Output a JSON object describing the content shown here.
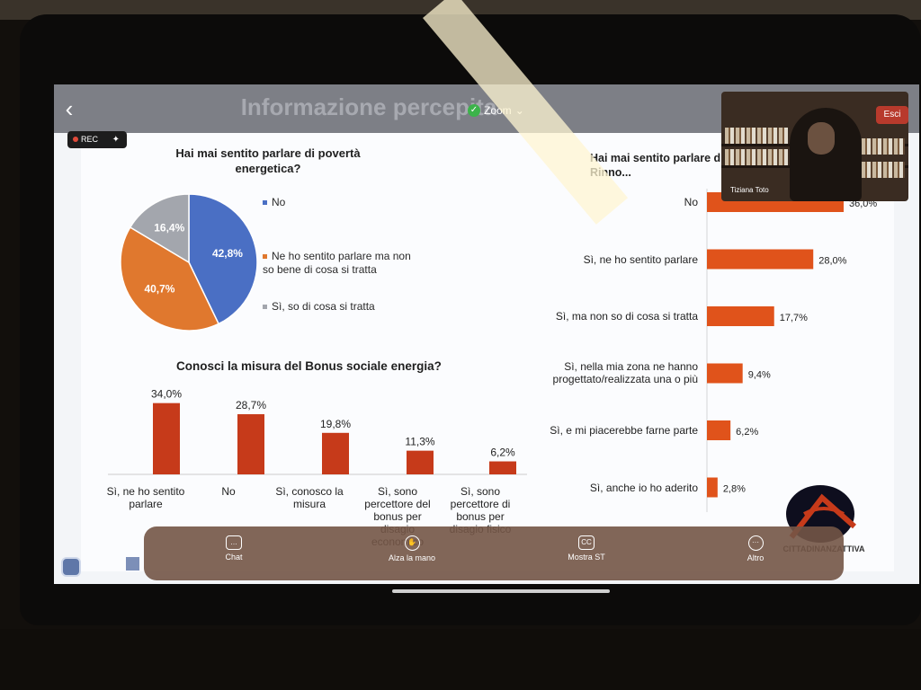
{
  "window": {
    "slide_title": "Informazione percepita",
    "zoom_label": "Zoom",
    "rec_label": "REC",
    "exit_label": "Esci",
    "participant_name": "Tiziana Toto"
  },
  "toolbar": {
    "chat_label": "Chat",
    "raise_hand_label": "Alza la mano",
    "subtitles_label": "Mostra ST",
    "more_label": "Altro"
  },
  "logo": {
    "text": "CITTADINANZATTIVA"
  },
  "icons": {
    "back": "chevron-left-icon",
    "zoom": "check-circle-icon",
    "rec": "sparkle-icon",
    "chat": "chat-icon",
    "raise_hand": "hand-icon",
    "subtitles": "cc-icon",
    "more": "more-icon"
  },
  "colors": {
    "pie_no": "#4a6fc4",
    "pie_heard": "#e0782e",
    "pie_know": "#a3a6ad",
    "bar": "#c63a1a",
    "hbar": "#e0531b"
  },
  "chart_data": [
    {
      "type": "pie",
      "title": "Hai mai sentito parlare di povertà energetica?",
      "slices": [
        {
          "label": "No",
          "value": 42.8,
          "display": "42,8%"
        },
        {
          "label": "Ne ho sentito parlare ma non so bene di cosa si tratta",
          "value": 40.7,
          "display": "40,7%"
        },
        {
          "label": "Sì, so di cosa si tratta",
          "value": 16.4,
          "display": "16,4%"
        }
      ],
      "legend_placement": "right"
    },
    {
      "type": "bar",
      "title": "Conosci la misura del Bonus sociale energia?",
      "categories": [
        "Sì, ne ho sentito parlare",
        "No",
        "Sì, conosco la misura",
        "Sì, sono percettore del bonus per disagio economico",
        "Sì, sono percettore di bonus per disagio fisico"
      ],
      "values": [
        34.0,
        28.7,
        19.8,
        11.3,
        6.2
      ],
      "labels": [
        "34,0%",
        "28,7%",
        "19,8%",
        "11,3%",
        "6,2%"
      ],
      "ylim": [
        0,
        36
      ]
    },
    {
      "type": "bar",
      "orientation": "horizontal",
      "title": "Hai mai sentito parlare di Comunità Energetiche Rinnovabili?",
      "title_visible": "Hai mai sentito parlare d... Rinno...",
      "categories": [
        "No",
        "Sì, ne ho sentito parlare",
        "Sì, ma non so di cosa si tratta",
        "Sì, nella mia zona ne hanno progettato/realizzata una o più",
        "Sì, e mi piacerebbe farne parte",
        "Sì, anche io ho aderito"
      ],
      "values": [
        36.0,
        28.0,
        17.7,
        9.4,
        6.2,
        2.8
      ],
      "labels": [
        "36,0%",
        "28,0%",
        "17,7%",
        "9,4%",
        "6,2%",
        "2,8%"
      ],
      "xlim": [
        0,
        36
      ]
    }
  ]
}
